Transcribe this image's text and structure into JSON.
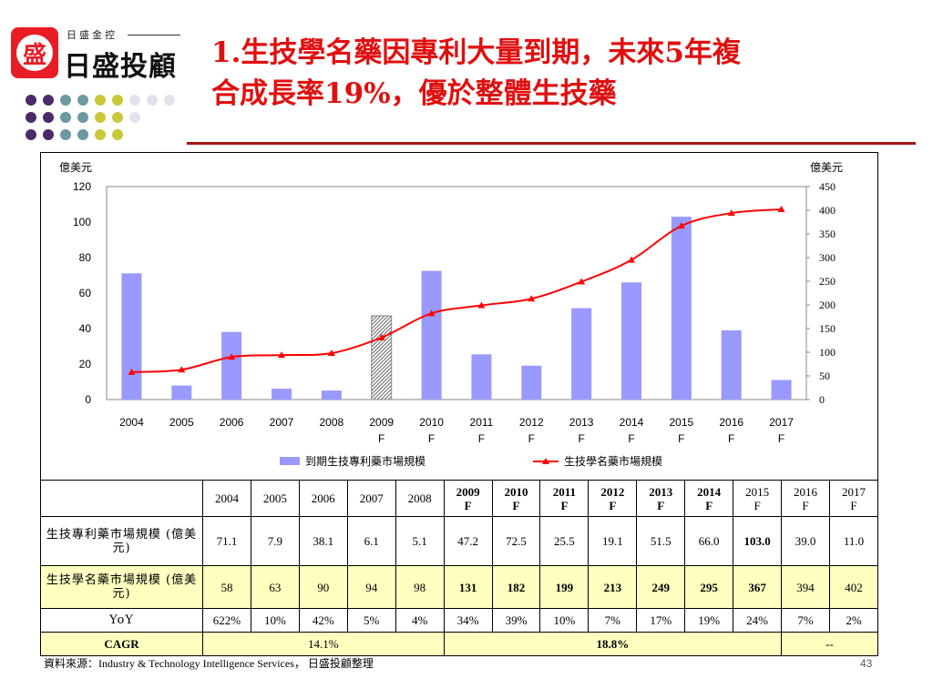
{
  "logo": {
    "glyph": "盛",
    "small_text": "日盛金控",
    "big_text": "日盛投顧"
  },
  "title": {
    "line1": "1.生技學名藥因專利大量到期，未來5年複",
    "line2": "合成長率19%，優於整體生技藥"
  },
  "colors": {
    "bar": "#9999ff",
    "line": "#ff0000",
    "title": "#e01010",
    "rule": "#a31515",
    "highlight": "#ffffc0"
  },
  "chart_data": {
    "type": "bar",
    "categories": [
      "2004",
      "2005",
      "2006",
      "2007",
      "2008",
      "2009 F",
      "2010 F",
      "2011 F",
      "2012 F",
      "2013 F",
      "2014 F",
      "2015 F",
      "2016 F",
      "2017 F"
    ],
    "x_tick_lines": [
      [
        "2004",
        ""
      ],
      [
        "2005",
        ""
      ],
      [
        "2006",
        ""
      ],
      [
        "2007",
        ""
      ],
      [
        "2008",
        ""
      ],
      [
        "2009",
        "F"
      ],
      [
        "2010",
        "F"
      ],
      [
        "2011",
        "F"
      ],
      [
        "2012",
        "F"
      ],
      [
        "2013",
        "F"
      ],
      [
        "2014",
        "F"
      ],
      [
        "2015",
        "F"
      ],
      [
        "2016",
        "F"
      ],
      [
        "2017",
        "F"
      ]
    ],
    "series": [
      {
        "name": "到期生技專利藥市場規模",
        "type": "bar",
        "axis": "left",
        "values": [
          71.1,
          7.9,
          38.1,
          6.1,
          5.1,
          47.2,
          72.5,
          25.5,
          19.1,
          51.5,
          66.0,
          103.0,
          39.0,
          11.0
        ],
        "hatched_index": 5
      },
      {
        "name": "生技學名藥市場規模",
        "type": "line",
        "axis": "right",
        "values": [
          58,
          63,
          90,
          94,
          98,
          131,
          182,
          199,
          213,
          249,
          295,
          367,
          394,
          402
        ]
      }
    ],
    "left_axis": {
      "label": "億美元",
      "ylim": [
        0,
        120
      ],
      "ticks": [
        0,
        20,
        40,
        60,
        80,
        100,
        120
      ]
    },
    "right_axis": {
      "label": "億美元",
      "ylim": [
        0,
        450
      ],
      "ticks": [
        0,
        50,
        100,
        150,
        200,
        250,
        300,
        350,
        400,
        450
      ]
    },
    "grid": false,
    "legend_position": "bottom"
  },
  "table": {
    "header": [
      "",
      "2004",
      "2005",
      "2006",
      "2007",
      "2008",
      "2009 F",
      "2010 F",
      "2011 F",
      "2012 F",
      "2013 F",
      "2014 F",
      "2015 F",
      "2016 F",
      "2017 F"
    ],
    "rows": [
      {
        "label": "生技專利藥市場規模 (億美元)",
        "values": [
          "71.1",
          "7.9",
          "38.1",
          "6.1",
          "5.1",
          "47.2",
          "72.5",
          "25.5",
          "19.1",
          "51.5",
          "66.0",
          "103.0",
          "39.0",
          "11.0"
        ]
      },
      {
        "label": "生技學名藥市場規模 (億美元)",
        "values": [
          "58",
          "63",
          "90",
          "94",
          "98",
          "131",
          "182",
          "199",
          "213",
          "249",
          "295",
          "367",
          "394",
          "402"
        ]
      },
      {
        "label": "YoY",
        "values": [
          "622%",
          "10%",
          "42%",
          "5%",
          "4%",
          "34%",
          "39%",
          "10%",
          "7%",
          "17%",
          "19%",
          "24%",
          "7%",
          "2%"
        ]
      },
      {
        "label": "CAGR",
        "values": [
          "14.1%",
          "18.8%",
          "--"
        ]
      }
    ]
  },
  "source": "資料來源：Industry & Technology Intelligence Services， 日盛投顧整理",
  "page_number": "43"
}
